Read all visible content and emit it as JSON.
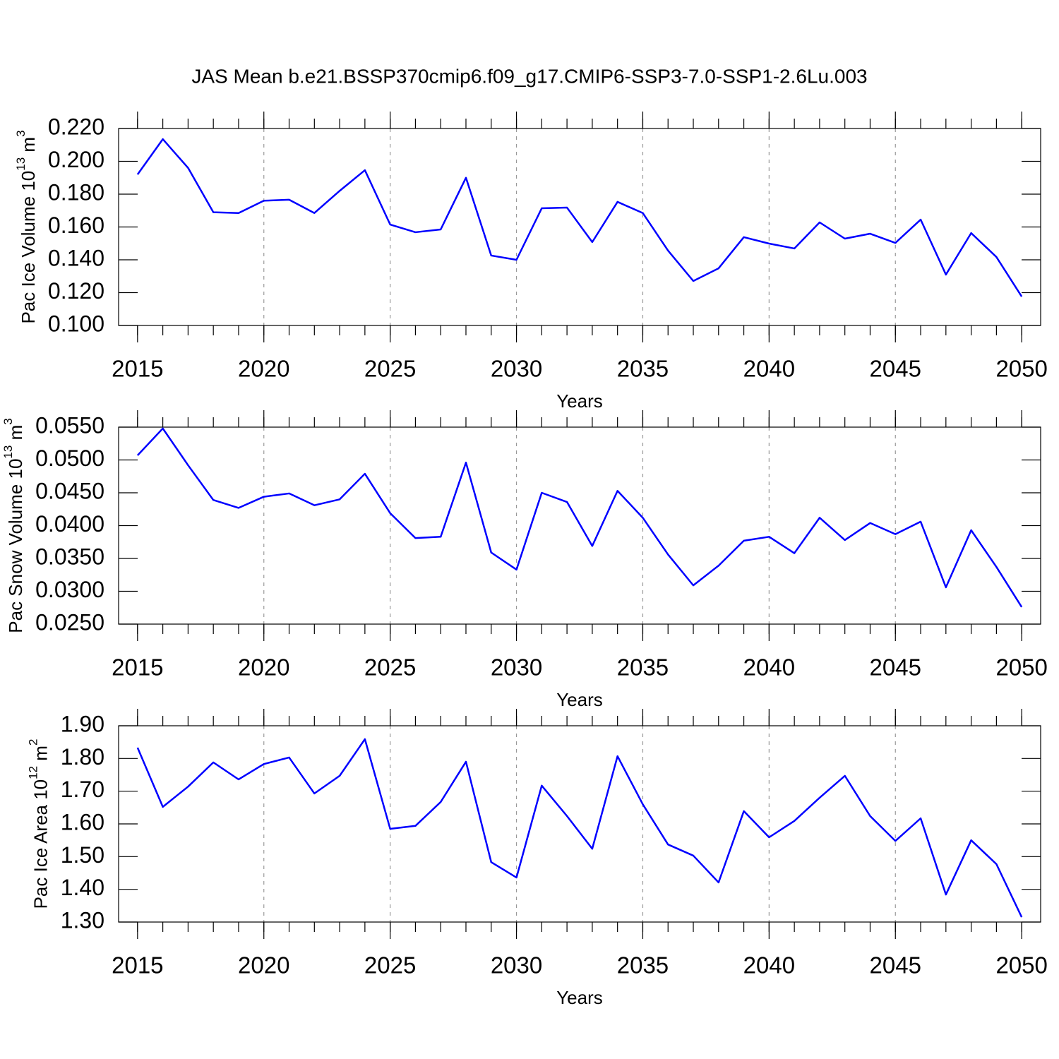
{
  "title": "JAS Mean b.e21.BSSP370cmip6.f09_g17.CMIP6-SSP3-7.0-SSP1-2.6Lu.003",
  "chart_data": [
    {
      "type": "line",
      "ylabel": [
        "Pac Ice Volume 10",
        "13",
        " m",
        "3"
      ],
      "xlabel": "Years",
      "x": [
        2015,
        2016,
        2017,
        2018,
        2019,
        2020,
        2021,
        2022,
        2023,
        2024,
        2025,
        2026,
        2027,
        2028,
        2029,
        2030,
        2031,
        2032,
        2033,
        2034,
        2035,
        2036,
        2037,
        2038,
        2039,
        2040,
        2041,
        2042,
        2043,
        2044,
        2045,
        2046,
        2047,
        2048,
        2049,
        2050
      ],
      "series": [
        {
          "color": "#0000ff",
          "values": [
            0.192,
            0.2135,
            0.196,
            0.169,
            0.1685,
            0.176,
            0.1766,
            0.1685,
            0.182,
            0.1946,
            0.1615,
            0.1568,
            0.1585,
            0.19,
            0.1426,
            0.14,
            0.1714,
            0.1718,
            0.1508,
            0.1753,
            0.1685,
            0.1456,
            0.1271,
            0.1348,
            0.1538,
            0.1499,
            0.1469,
            0.1628,
            0.1529,
            0.1559,
            0.1503,
            0.1645,
            0.131,
            0.1563,
            0.1417,
            0.1176
          ]
        }
      ],
      "xlim": [
        2014.25,
        2050.75
      ],
      "xticks": [
        2015,
        2020,
        2025,
        2030,
        2035,
        2040,
        2045,
        2050
      ],
      "ylim": [
        0.1,
        0.22
      ],
      "yticks": [
        {
          "value": 0.1,
          "label": "0.100"
        },
        {
          "value": 0.12,
          "label": "0.120"
        },
        {
          "value": 0.14,
          "label": "0.140"
        },
        {
          "value": 0.16,
          "label": "0.160"
        },
        {
          "value": 0.18,
          "label": "0.180"
        },
        {
          "value": 0.2,
          "label": "0.200"
        },
        {
          "value": 0.22,
          "label": "0.220"
        }
      ],
      "grid": true
    },
    {
      "type": "line",
      "ylabel": [
        "Pac Snow Volume 10",
        "13",
        " m",
        "3"
      ],
      "xlabel": "Years",
      "x": [
        2015,
        2016,
        2017,
        2018,
        2019,
        2020,
        2021,
        2022,
        2023,
        2024,
        2025,
        2026,
        2027,
        2028,
        2029,
        2030,
        2031,
        2032,
        2033,
        2034,
        2035,
        2036,
        2037,
        2038,
        2039,
        2040,
        2041,
        2042,
        2043,
        2044,
        2045,
        2046,
        2047,
        2048,
        2049,
        2050
      ],
      "series": [
        {
          "color": "#0000ff",
          "values": [
            0.0507,
            0.0548,
            0.0492,
            0.0439,
            0.0427,
            0.0444,
            0.0449,
            0.0431,
            0.044,
            0.0479,
            0.0419,
            0.0381,
            0.0383,
            0.0496,
            0.0359,
            0.0333,
            0.045,
            0.0436,
            0.0369,
            0.0453,
            0.0412,
            0.0356,
            0.0309,
            0.0339,
            0.0377,
            0.0383,
            0.0358,
            0.0412,
            0.0378,
            0.0404,
            0.0387,
            0.0406,
            0.0306,
            0.0393,
            0.0337,
            0.0276
          ]
        }
      ],
      "xlim": [
        2014.25,
        2050.75
      ],
      "xticks": [
        2015,
        2020,
        2025,
        2030,
        2035,
        2040,
        2045,
        2050
      ],
      "ylim": [
        0.025,
        0.055
      ],
      "yticks": [
        {
          "value": 0.025,
          "label": "0.0250"
        },
        {
          "value": 0.03,
          "label": "0.0300"
        },
        {
          "value": 0.035,
          "label": "0.0350"
        },
        {
          "value": 0.04,
          "label": "0.0400"
        },
        {
          "value": 0.045,
          "label": "0.0450"
        },
        {
          "value": 0.05,
          "label": "0.0500"
        },
        {
          "value": 0.055,
          "label": "0.0550"
        }
      ],
      "grid": true
    },
    {
      "type": "line",
      "ylabel": [
        "Pac Ice Area 10",
        "12",
        " m",
        "2"
      ],
      "xlabel": "Years",
      "x": [
        2015,
        2016,
        2017,
        2018,
        2019,
        2020,
        2021,
        2022,
        2023,
        2024,
        2025,
        2026,
        2027,
        2028,
        2029,
        2030,
        2031,
        2032,
        2033,
        2034,
        2035,
        2036,
        2037,
        2038,
        2039,
        2040,
        2041,
        2042,
        2043,
        2044,
        2045,
        2046,
        2047,
        2048,
        2049,
        2050
      ],
      "series": [
        {
          "color": "#0000ff",
          "values": [
            1.833,
            1.652,
            1.714,
            1.788,
            1.736,
            1.783,
            1.803,
            1.693,
            1.747,
            1.859,
            1.585,
            1.594,
            1.667,
            1.79,
            1.483,
            1.436,
            1.717,
            1.624,
            1.524,
            1.807,
            1.66,
            1.537,
            1.503,
            1.421,
            1.639,
            1.559,
            1.609,
            1.68,
            1.747,
            1.624,
            1.548,
            1.617,
            1.384,
            1.55,
            1.477,
            1.315
          ]
        }
      ],
      "xlim": [
        2014.25,
        2050.75
      ],
      "xticks": [
        2015,
        2020,
        2025,
        2030,
        2035,
        2040,
        2045,
        2050
      ],
      "ylim": [
        1.3,
        1.9
      ],
      "yticks": [
        {
          "value": 1.3,
          "label": "1.30"
        },
        {
          "value": 1.4,
          "label": "1.40"
        },
        {
          "value": 1.5,
          "label": "1.50"
        },
        {
          "value": 1.6,
          "label": "1.60"
        },
        {
          "value": 1.7,
          "label": "1.70"
        },
        {
          "value": 1.8,
          "label": "1.80"
        },
        {
          "value": 1.9,
          "label": "1.90"
        }
      ],
      "grid": true
    }
  ]
}
